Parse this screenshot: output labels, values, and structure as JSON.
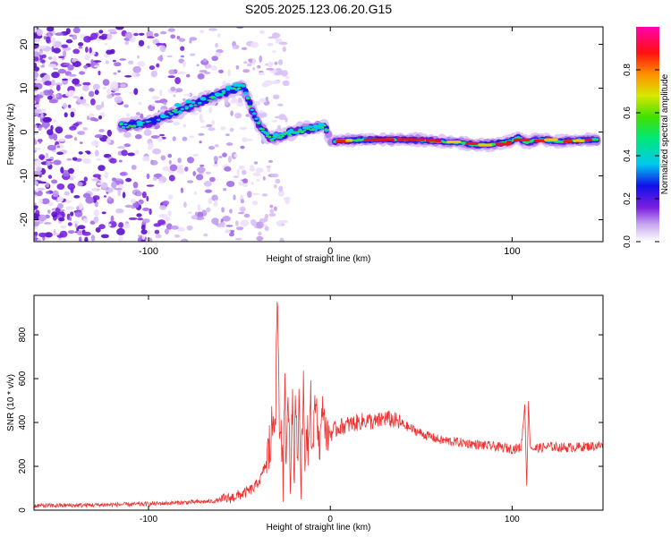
{
  "title": "S205.2025.123.06.20.G15",
  "chart_data": [
    {
      "type": "heatmap",
      "xlabel": "Height of straight line (km)",
      "ylabel": "Frequency (Hz)",
      "xlim": [
        -163,
        150
      ],
      "ylim": [
        -25,
        24
      ],
      "xticks": [
        -100,
        0,
        100
      ],
      "yticks": [
        -20,
        -10,
        0,
        10,
        20
      ],
      "grid": false,
      "colorbar": {
        "label": "Normalized spectral amplitude",
        "range": [
          0,
          1
        ],
        "ticks": [
          0.0,
          0.2,
          0.4,
          0.6,
          0.8
        ]
      },
      "ridge": {
        "x": [
          -115,
          -100,
          -80,
          -65,
          -55,
          -48,
          -40,
          -33,
          -25,
          -18,
          -12,
          -6,
          -3,
          0,
          5,
          15,
          30,
          50,
          60,
          70,
          80,
          90,
          100,
          103,
          108,
          115,
          125,
          140,
          147
        ],
        "y": [
          1.5,
          2,
          5.5,
          8,
          9.5,
          10.5,
          2,
          -1.5,
          -0.5,
          0.3,
          0.7,
          1.2,
          1.5,
          -2.2,
          -2,
          -1.8,
          -1.7,
          -1.8,
          -2.2,
          -2.3,
          -3,
          -2.8,
          -2,
          -1.2,
          -2.4,
          -1.6,
          -2.2,
          -1.8,
          -1.8
        ]
      }
    },
    {
      "type": "line",
      "xlabel": "Height of straight line (km)",
      "ylabel": "SNR (10 * v/v)",
      "xlim": [
        -163,
        150
      ],
      "ylim": [
        0,
        980
      ],
      "xticks": [
        -100,
        0,
        100
      ],
      "yticks": [
        0,
        200,
        400,
        600,
        800
      ],
      "grid": false,
      "series": [
        {
          "color": "#ef3333",
          "x": [
            -163,
            -140,
            -120,
            -100,
            -80,
            -65,
            -55,
            -48,
            -42,
            -38,
            -35,
            -33,
            -31,
            -30,
            -29,
            -28,
            -27,
            -26,
            -25,
            -24,
            -23,
            -22,
            -21,
            -20,
            -19,
            -18,
            -17,
            -16,
            -15,
            -14,
            -13,
            -12,
            -11,
            -10,
            -8,
            -6,
            -4,
            -2,
            0,
            5,
            10,
            15,
            20,
            25,
            30,
            35,
            40,
            50,
            60,
            70,
            80,
            90,
            100,
            105,
            107,
            108,
            109,
            110,
            112,
            120,
            130,
            140,
            150
          ],
          "y": [
            20,
            22,
            25,
            28,
            35,
            40,
            55,
            75,
            100,
            150,
            220,
            300,
            450,
            520,
            980,
            350,
            420,
            120,
            500,
            200,
            540,
            180,
            520,
            150,
            560,
            250,
            480,
            100,
            600,
            200,
            420,
            300,
            610,
            250,
            520,
            280,
            480,
            330,
            350,
            380,
            390,
            400,
            410,
            400,
            420,
            410,
            390,
            350,
            320,
            310,
            300,
            290,
            280,
            285,
            480,
            110,
            490,
            290,
            280,
            290,
            285,
            290,
            295
          ]
        }
      ]
    }
  ]
}
